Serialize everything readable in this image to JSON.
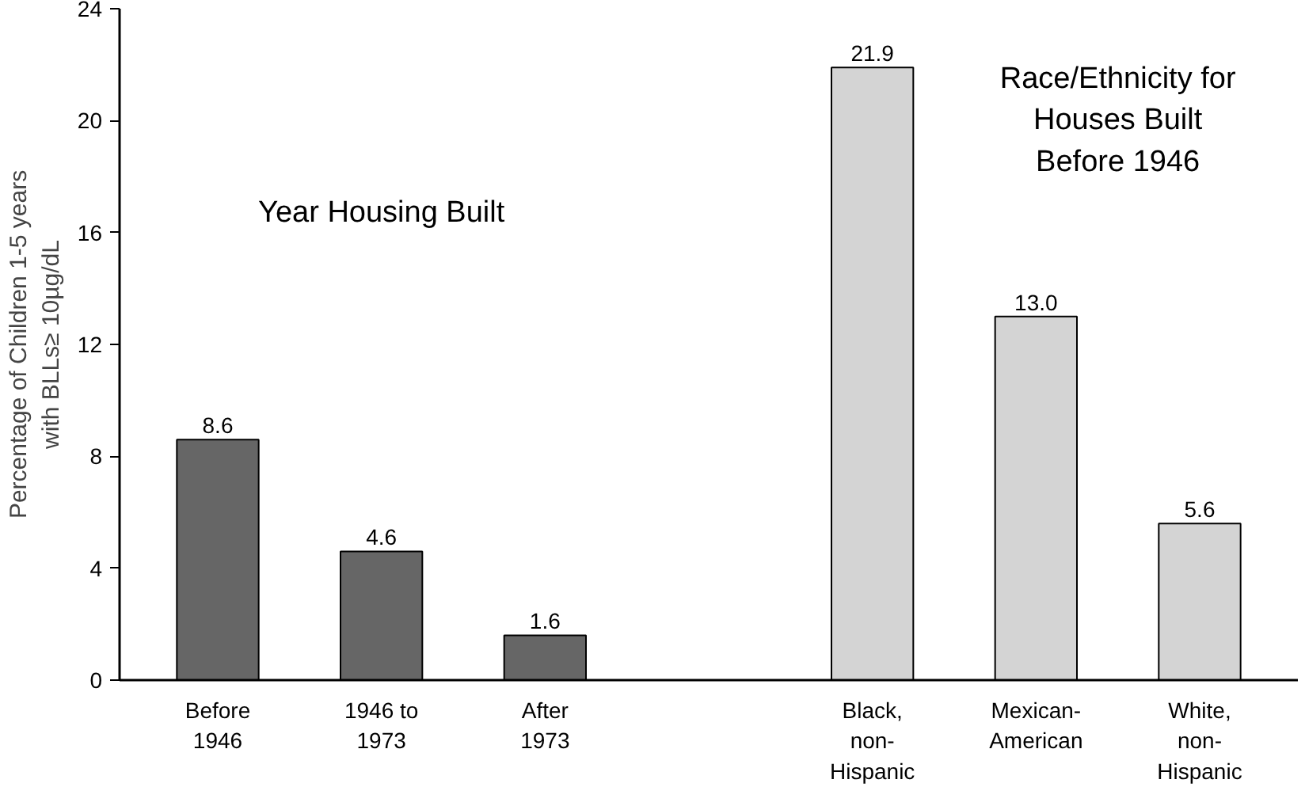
{
  "chart_data": {
    "type": "bar",
    "ylabel": "Percentage of Children 1-5 years with BLLs≥ 10µg/dL",
    "categories": [
      "Before 1946",
      "1946 to 1973",
      "After 1973",
      null,
      "Black, non-Hispanic",
      "Mexican-American",
      "White, non-Hispanic"
    ],
    "values": [
      8.6,
      4.6,
      1.6,
      null,
      21.9,
      13.0,
      5.6
    ],
    "colors": [
      "#666666",
      "#666666",
      "#666666",
      "#d4d4d4",
      "#d4d4d4",
      "#d4d4d4",
      "#d4d4d4"
    ],
    "value_labels": [
      "8.6",
      "4.6",
      "1.6",
      null,
      "21.9",
      "13.0",
      "5.6"
    ],
    "ylim": [
      0,
      24
    ],
    "yticks": [
      0,
      4,
      8,
      12,
      16,
      20,
      24
    ],
    "grid": false,
    "annotations": [
      "Year Housing Built",
      "Race/Ethnicity for Houses Built Before 1946"
    ]
  }
}
